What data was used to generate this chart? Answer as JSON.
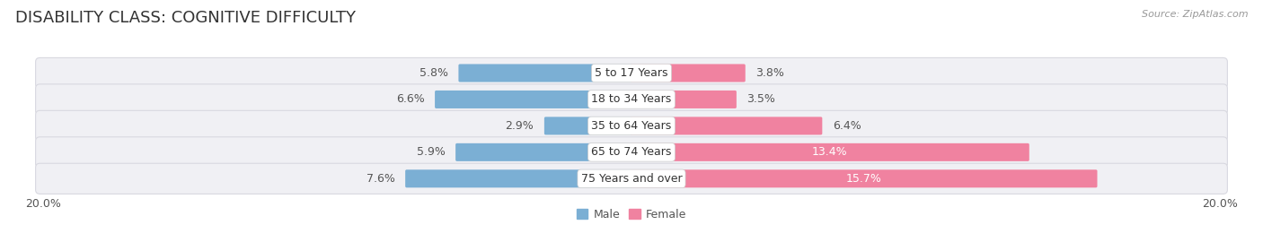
{
  "title": "DISABILITY CLASS: COGNITIVE DIFFICULTY",
  "source": "Source: ZipAtlas.com",
  "categories": [
    "5 to 17 Years",
    "18 to 34 Years",
    "35 to 64 Years",
    "65 to 74 Years",
    "75 Years and over"
  ],
  "male_values": [
    5.8,
    6.6,
    2.9,
    5.9,
    7.6
  ],
  "female_values": [
    3.8,
    3.5,
    6.4,
    13.4,
    15.7
  ],
  "male_color": "#7bafd4",
  "female_color": "#f082a0",
  "row_bg_color": "#f0f0f4",
  "page_bg_color": "#ffffff",
  "max_value": 20.0,
  "x_left_label": "20.0%",
  "x_right_label": "20.0%",
  "title_fontsize": 13,
  "source_fontsize": 8,
  "label_fontsize": 9,
  "bar_label_fontsize": 9,
  "category_fontsize": 9,
  "legend_fontsize": 9,
  "inside_label_threshold": 8.0
}
